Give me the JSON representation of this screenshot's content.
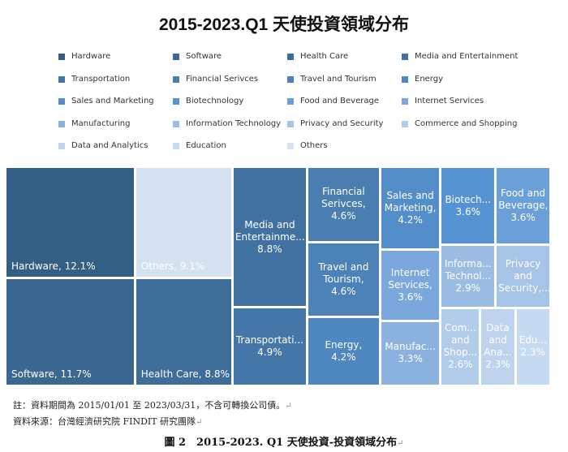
{
  "chart_data": {
    "type": "treemap",
    "title": "2015-2023.Q1 天使投資領域分布",
    "legend_position": "top",
    "series": [
      {
        "name": "Hardware",
        "label": "Hardware, 12.1%",
        "value": 12.1,
        "color": "#335f85"
      },
      {
        "name": "Software",
        "label": "Software, 11.7%",
        "value": 11.7,
        "color": "#3a6891"
      },
      {
        "name": "Health Care",
        "label": "Health Care, 8.8%",
        "value": 8.8,
        "color": "#3e6d99"
      },
      {
        "name": "Media and Entertainment",
        "label": "Media and Entertainme... 8.8%",
        "value": 8.8,
        "color": "#4071a0"
      },
      {
        "name": "Transportation",
        "label": "Transportati... 4.9%",
        "value": 4.9,
        "color": "#4476a7"
      },
      {
        "name": "Financial Serivces",
        "label": "Financial Serivces, 4.6%",
        "value": 4.6,
        "color": "#4a7db0"
      },
      {
        "name": "Travel and Tourism",
        "label": "Travel and Tourism, 4.6%",
        "value": 4.6,
        "color": "#4c82b8"
      },
      {
        "name": "Energy",
        "label": "Energy, 4.2%",
        "value": 4.2,
        "color": "#4f87c0"
      },
      {
        "name": "Sales and Marketing",
        "label": "Sales and Marketing, 4.2%",
        "value": 4.2,
        "color": "#538dca"
      },
      {
        "name": "Biotechnology",
        "label": "Biotech... 3.6%",
        "value": 3.6,
        "color": "#5593d2"
      },
      {
        "name": "Food and Beverage",
        "label": "Food and Beverage, 3.6%",
        "value": 3.6,
        "color": "#6b9fd8"
      },
      {
        "name": "Internet Services",
        "label": "Internet Services, 3.6%",
        "value": 3.6,
        "color": "#7aa8dc"
      },
      {
        "name": "Manufacturing",
        "label": "Manufac... 3.3%",
        "value": 3.3,
        "color": "#8bb2df"
      },
      {
        "name": "Information Technology",
        "label": "Informa... Technol... 2.9%",
        "value": 2.9,
        "color": "#9bbde4"
      },
      {
        "name": "Privacy and Security",
        "label": "Privacy and Security,...",
        "value": 2.9,
        "color": "#a6c4e7"
      },
      {
        "name": "Commerce and Shopping",
        "label": "Com... and Shop... 2.6%",
        "value": 2.6,
        "color": "#b2cceb"
      },
      {
        "name": "Data and Analytics",
        "label": "Data and Ana... 2.3%",
        "value": 2.3,
        "color": "#bdd3ee"
      },
      {
        "name": "Education",
        "label": "Edu... 2.3%",
        "value": 2.3,
        "color": "#c6daf1"
      },
      {
        "name": "Others",
        "label": "Others, 9.1%",
        "value": 9.1,
        "color": "#d5e2f2"
      }
    ]
  },
  "note": "註：資料期間為 2015/01/01 至 2023/03/31，不含可轉換公司債。",
  "source": "資料來源：台灣經濟研究院 FINDIT 研究團隊",
  "caption": "圖 2　2015-2023. Q1 天使投資-投資領域分布",
  "para_mark": "↵"
}
